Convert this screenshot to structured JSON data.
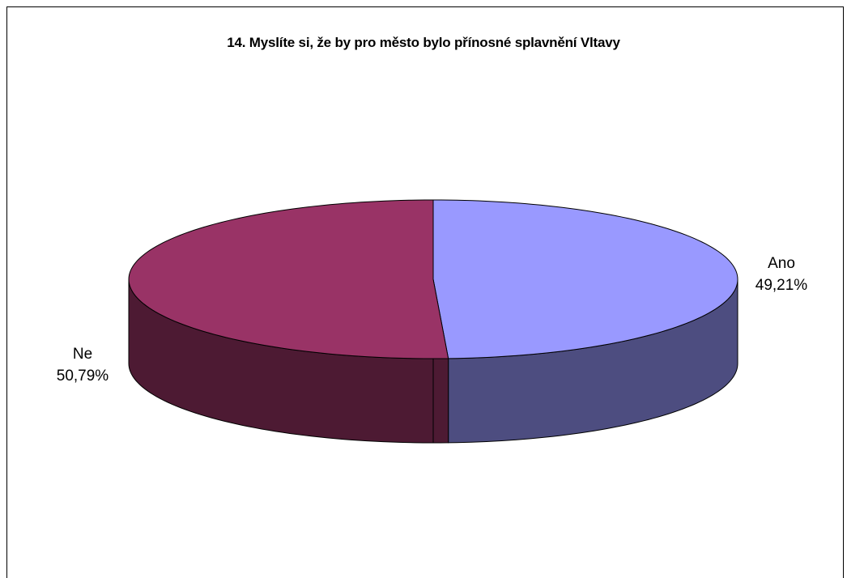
{
  "chart_data": {
    "type": "pie",
    "title": "14. Myslíte si, že by pro město bylo přínosné splavnění Vltavy",
    "slices": [
      {
        "label": "Ano",
        "value": 49.21,
        "value_label": "49,21%",
        "color": "#9999ff",
        "side_color": "#4d4d80"
      },
      {
        "label": "Ne",
        "value": 50.79,
        "value_label": "50,79%",
        "color": "#993366",
        "side_color": "#4d1a33"
      }
    ],
    "three_d": true,
    "legend": "none"
  }
}
